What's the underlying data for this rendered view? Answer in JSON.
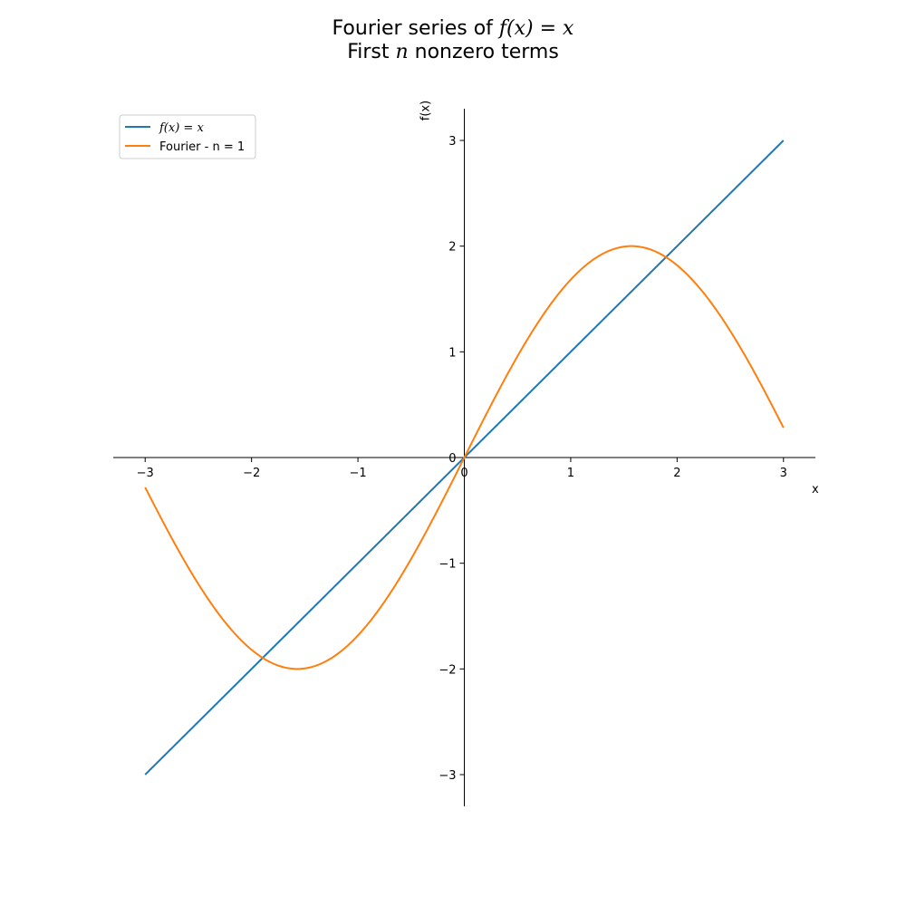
{
  "title": {
    "line1_prefix": "Fourier series of ",
    "line1_math": "f(x) = x",
    "line2_prefix": "First ",
    "line2_math": "n",
    "line2_suffix": " nonzero terms"
  },
  "chart_data": {
    "type": "line",
    "xlabel": "x",
    "ylabel": "f(x)",
    "xlim": [
      -3.3,
      3.3
    ],
    "ylim": [
      -3.3,
      3.3
    ],
    "xticks": [
      -3,
      -2,
      -1,
      0,
      1,
      2,
      3
    ],
    "yticks": [
      -3,
      -2,
      -1,
      0,
      1,
      2,
      3
    ],
    "xtick_labels": [
      "−3",
      "−2",
      "−1",
      "0",
      "1",
      "2",
      "3"
    ],
    "ytick_labels": [
      "−3",
      "−2",
      "−1",
      "0",
      "1",
      "2",
      "3"
    ],
    "grid": false,
    "legend_position": "upper-left",
    "series": [
      {
        "name": "f(x) = x",
        "color": "#1f77b4",
        "function": "identity",
        "x_range": [
          -3,
          3
        ]
      },
      {
        "name": "Fourier - n = 1",
        "color": "#ff7f0e",
        "function": "2*sin(x)",
        "x_range": [
          -3,
          3
        ]
      }
    ]
  }
}
